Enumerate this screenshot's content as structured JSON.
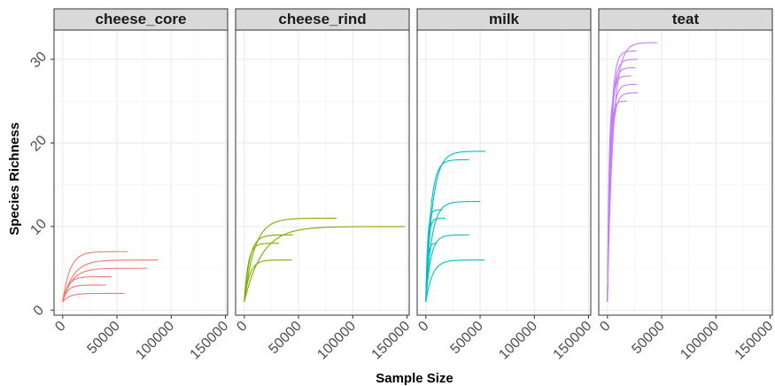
{
  "chart_data": {
    "type": "line",
    "xlabel": "Sample Size",
    "ylabel": "Species Richness",
    "xlim": [
      -8000,
      152000
    ],
    "ylim": [
      -0.6,
      33.5
    ],
    "x_ticks": [
      0,
      50000,
      100000,
      150000
    ],
    "x_tick_labels": [
      "0",
      "50000",
      "100000",
      "150000"
    ],
    "y_ticks": [
      0,
      10,
      20,
      30
    ],
    "y_tick_labels": [
      "0",
      "10",
      "20",
      "30"
    ],
    "grid": true,
    "facets": [
      {
        "name": "cheese_core",
        "color": "#F8766D",
        "series": [
          {
            "max_x": 60000,
            "max_y": 7
          },
          {
            "max_x": 88000,
            "max_y": 6
          },
          {
            "max_x": 78000,
            "max_y": 5
          },
          {
            "max_x": 45000,
            "max_y": 4
          },
          {
            "max_x": 40000,
            "max_y": 3
          },
          {
            "max_x": 57000,
            "max_y": 2
          }
        ]
      },
      {
        "name": "cheese_rind",
        "color": "#7CAE00",
        "series": [
          {
            "max_x": 85000,
            "max_y": 11
          },
          {
            "max_x": 148000,
            "max_y": 10
          },
          {
            "max_x": 45000,
            "max_y": 9
          },
          {
            "max_x": 32000,
            "max_y": 8
          },
          {
            "max_x": 44000,
            "max_y": 6
          },
          {
            "max_x": 0,
            "max_y": 1
          }
        ]
      },
      {
        "name": "milk",
        "color": "#00BFC4",
        "series": [
          {
            "max_x": 55000,
            "max_y": 19
          },
          {
            "max_x": 40000,
            "max_y": 18
          },
          {
            "max_x": 50000,
            "max_y": 13
          },
          {
            "max_x": 15000,
            "max_y": 12
          },
          {
            "max_x": 18000,
            "max_y": 11
          },
          {
            "max_x": 40000,
            "max_y": 9
          },
          {
            "max_x": 10000,
            "max_y": 8
          },
          {
            "max_x": 54000,
            "max_y": 6
          },
          {
            "max_x": 0,
            "max_y": 1
          }
        ]
      },
      {
        "name": "teat",
        "color": "#C77CFF",
        "series": [
          {
            "max_x": 46000,
            "max_y": 32
          },
          {
            "max_x": 27000,
            "max_y": 31
          },
          {
            "max_x": 28000,
            "max_y": 30
          },
          {
            "max_x": 26000,
            "max_y": 29
          },
          {
            "max_x": 22000,
            "max_y": 28
          },
          {
            "max_x": 27000,
            "max_y": 27
          },
          {
            "max_x": 28000,
            "max_y": 26
          },
          {
            "max_x": 18000,
            "max_y": 25
          },
          {
            "max_x": 5000,
            "max_y": 25
          },
          {
            "max_x": 0,
            "max_y": 1
          }
        ]
      }
    ]
  }
}
